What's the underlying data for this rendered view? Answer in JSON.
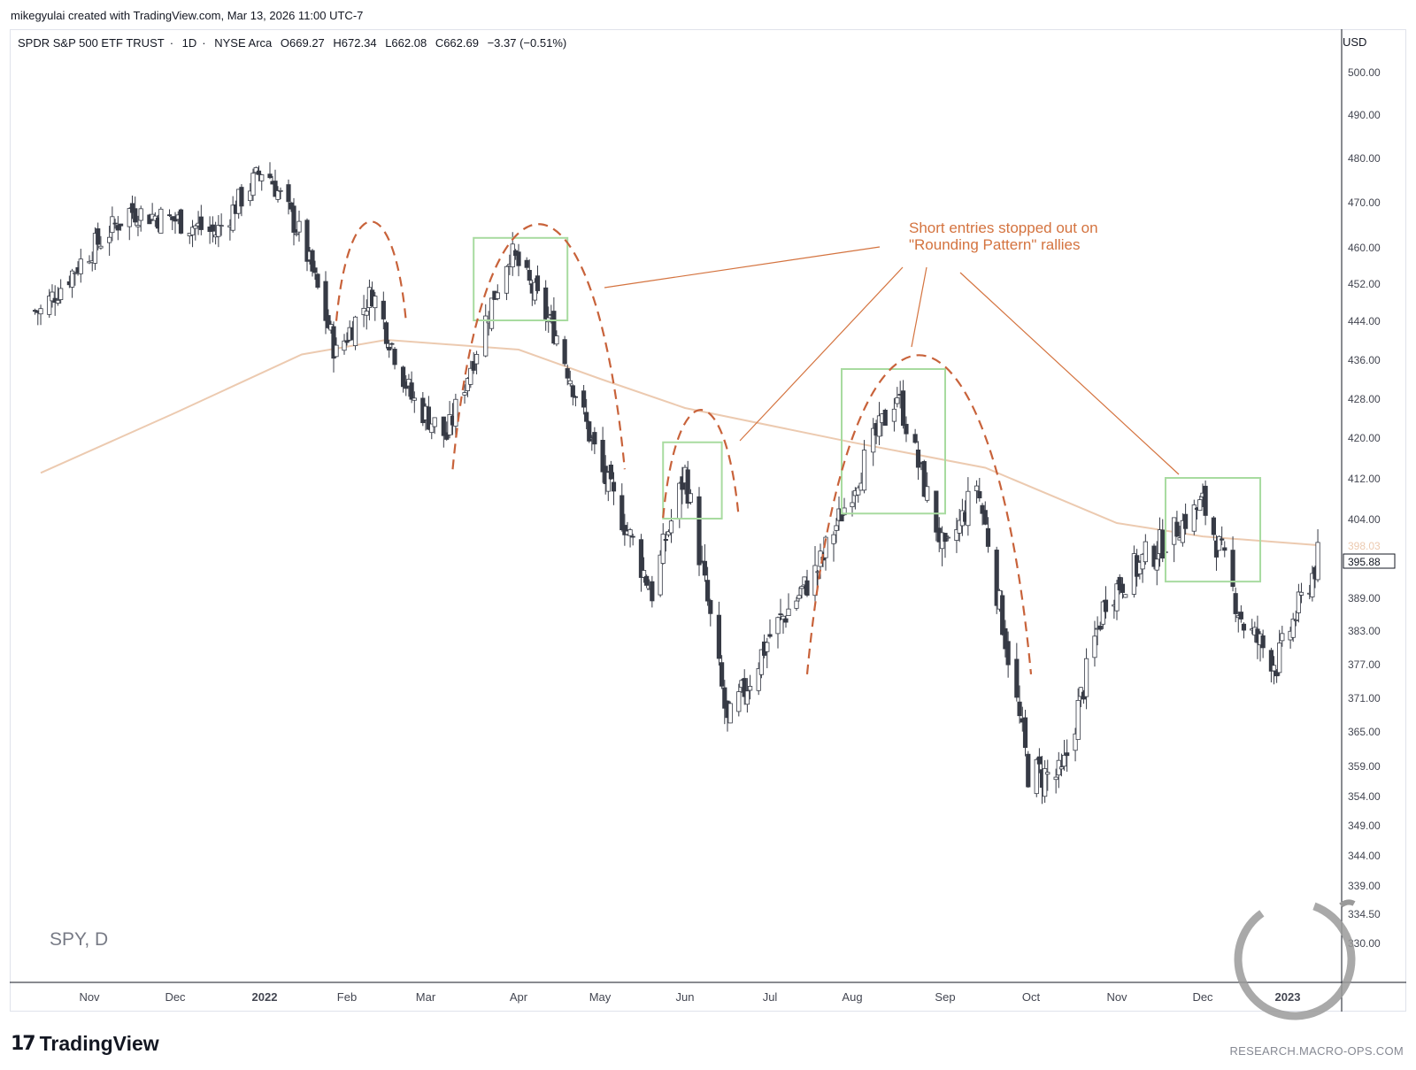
{
  "header": {
    "created_line": "mikegyulai created with TradingView.com, Mar 13, 2026 11:00 UTC-7"
  },
  "legend": {
    "symbol_name": "SPDR S&P 500 ETF TRUST",
    "interval": "1D",
    "exchange": "NYSE Arca",
    "open": "O669.27",
    "high": "H672.34",
    "low": "L662.08",
    "close": "C662.69",
    "change": "−3.37 (−0.51%)"
  },
  "watermark_symbol": "SPY, D",
  "currency_label": "USD",
  "brand": {
    "logo_mark": "17",
    "name": "TradingView",
    "credit": "RESEARCH.MACRO-OPS.COM"
  },
  "annotation": {
    "line1": "Short entries stopped out on",
    "line2": "\"Rounding Pattern\" rallies"
  },
  "colors": {
    "bull_candle": "#ffffff",
    "bear_candle": "#363a45",
    "ma_line": "#eccab0",
    "dashed_arcs": "#c8623a",
    "boxes": "#a8dba0",
    "annotation": "#d4733f"
  },
  "chart_data": {
    "type": "candlestick",
    "title": "SPDR S&P 500 ETF TRUST · 1D · NYSE Arca",
    "y_axis_ticks": [
      "500.00",
      "490.00",
      "480.00",
      "470.00",
      "460.00",
      "452.00",
      "444.00",
      "436.00",
      "428.00",
      "420.00",
      "412.00",
      "404.00",
      "398.03",
      "395.88",
      "389.00",
      "383.00",
      "377.00",
      "371.00",
      "365.00",
      "359.00",
      "354.00",
      "349.00",
      "344.00",
      "339.00",
      "334.50",
      "330.00"
    ],
    "x_axis_ticks": [
      "Nov",
      "Dec",
      "2022",
      "Feb",
      "Mar",
      "Apr",
      "May",
      "Jun",
      "Jul",
      "Aug",
      "Sep",
      "Oct",
      "Nov",
      "Dec",
      "2023"
    ],
    "ma_value_label": "398.03",
    "last_price_label": "395.88",
    "price_path": [
      {
        "date": "2021-10-15",
        "close": 446
      },
      {
        "date": "2021-11-01",
        "close": 459
      },
      {
        "date": "2021-11-15",
        "close": 468
      },
      {
        "date": "2021-12-01",
        "close": 466
      },
      {
        "date": "2021-12-15",
        "close": 463
      },
      {
        "date": "2022-01-01",
        "close": 478
      },
      {
        "date": "2022-01-15",
        "close": 462
      },
      {
        "date": "2022-01-28",
        "close": 437
      },
      {
        "date": "2022-02-10",
        "close": 450
      },
      {
        "date": "2022-02-24",
        "close": 428
      },
      {
        "date": "2022-03-08",
        "close": 420
      },
      {
        "date": "2022-03-29",
        "close": 459
      },
      {
        "date": "2022-04-15",
        "close": 441
      },
      {
        "date": "2022-05-01",
        "close": 414
      },
      {
        "date": "2022-05-20",
        "close": 390
      },
      {
        "date": "2022-06-01",
        "close": 413
      },
      {
        "date": "2022-06-16",
        "close": 366
      },
      {
        "date": "2022-07-01",
        "close": 382
      },
      {
        "date": "2022-07-20",
        "close": 395
      },
      {
        "date": "2022-08-16",
        "close": 429
      },
      {
        "date": "2022-09-01",
        "close": 396
      },
      {
        "date": "2022-09-12",
        "close": 411
      },
      {
        "date": "2022-09-30",
        "close": 358
      },
      {
        "date": "2022-10-12",
        "close": 357
      },
      {
        "date": "2022-10-28",
        "close": 389
      },
      {
        "date": "2022-11-15",
        "close": 398
      },
      {
        "date": "2022-12-01",
        "close": 407
      },
      {
        "date": "2022-12-16",
        "close": 384
      },
      {
        "date": "2022-12-28",
        "close": 377
      },
      {
        "date": "2023-01-12",
        "close": 395.88
      }
    ],
    "ma_path": [
      {
        "date": "2021-10-15",
        "value": 413
      },
      {
        "date": "2021-12-01",
        "value": 425
      },
      {
        "date": "2022-01-15",
        "value": 437
      },
      {
        "date": "2022-02-15",
        "value": 440
      },
      {
        "date": "2022-04-01",
        "value": 438
      },
      {
        "date": "2022-05-01",
        "value": 432
      },
      {
        "date": "2022-06-01",
        "value": 426
      },
      {
        "date": "2022-08-01",
        "value": 419
      },
      {
        "date": "2022-09-15",
        "value": 414
      },
      {
        "date": "2022-11-01",
        "value": 403
      },
      {
        "date": "2022-12-01",
        "value": 400
      },
      {
        "date": "2023-01-12",
        "value": 398.03
      }
    ],
    "highlight_boxes": [
      {
        "from": "2022-03-17",
        "to": "2022-04-19",
        "low": 444,
        "high": 462
      },
      {
        "from": "2022-05-24",
        "to": "2022-06-14",
        "low": 404,
        "high": 419
      },
      {
        "from": "2022-07-28",
        "to": "2022-09-01",
        "low": 405,
        "high": 434
      },
      {
        "from": "2022-11-18",
        "to": "2022-12-22",
        "low": 392,
        "high": 412
      }
    ],
    "rounding_arcs": [
      {
        "from": "2022-01-28",
        "to": "2022-02-22",
        "peak": 466
      },
      {
        "from": "2022-03-10",
        "to": "2022-05-10",
        "peak": 466
      },
      {
        "from": "2022-05-24",
        "to": "2022-06-20",
        "peak": 426
      },
      {
        "from": "2022-07-15",
        "to": "2022-10-01",
        "peak": 438
      }
    ],
    "grid": false,
    "legend_position": "top-left"
  }
}
